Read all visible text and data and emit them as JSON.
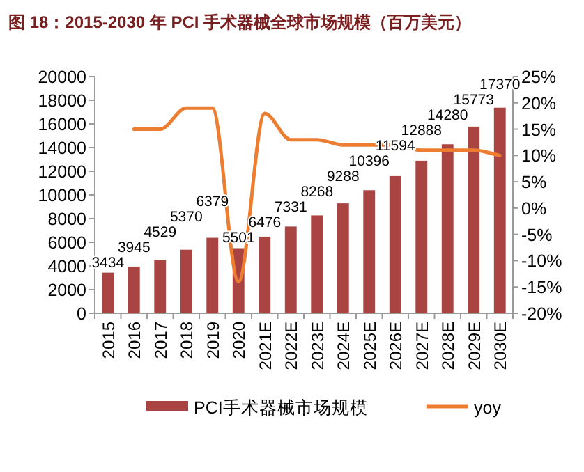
{
  "chart_data": {
    "type": "bar",
    "title": "图 18：2015-2030 年 PCI 手术器械全球市场规模（百万美元）",
    "categories": [
      "2015",
      "2016",
      "2017",
      "2018",
      "2019",
      "2020",
      "2021E",
      "2022E",
      "2023E",
      "2024E",
      "2025E",
      "2026E",
      "2027E",
      "2028E",
      "2029E",
      "2030E"
    ],
    "series": [
      {
        "name": "PCI手术器械市场规模",
        "color": "#a94442",
        "values": [
          3434,
          3945,
          4529,
          5370,
          6379,
          5501,
          6476,
          7331,
          8268,
          9288,
          10396,
          11594,
          12888,
          14280,
          15773,
          17370
        ],
        "value_labels": [
          "3434",
          "3945",
          "4529",
          "5370",
          "6379",
          "5501",
          "6476",
          "7331",
          "8268",
          "9288",
          "10396",
          "11594",
          "12888",
          "14280",
          "15773",
          "17370"
        ]
      },
      {
        "name": "yoy",
        "type": "line",
        "axis": "y2",
        "color": "#ed7d31",
        "values": [
          null,
          15,
          15,
          19,
          19,
          -14,
          18,
          13,
          13,
          12,
          12,
          12,
          11,
          11,
          11,
          10
        ]
      }
    ],
    "ylim": [
      0,
      20000
    ],
    "yticks": [
      0,
      2000,
      4000,
      6000,
      8000,
      10000,
      12000,
      14000,
      16000,
      18000,
      20000
    ],
    "y2lim": [
      -20,
      25
    ],
    "y2ticks": [
      {
        "value": -20,
        "label": "-20%"
      },
      {
        "value": -15,
        "label": "-15%"
      },
      {
        "value": -10,
        "label": "-10%"
      },
      {
        "value": -5,
        "label": "-5%"
      },
      {
        "value": 0,
        "label": "0%"
      },
      {
        "value": 5,
        "label": "5%"
      },
      {
        "value": 10,
        "label": "10%"
      },
      {
        "value": 15,
        "label": "15%"
      },
      {
        "value": 20,
        "label": "20%"
      },
      {
        "value": 25,
        "label": "25%"
      }
    ],
    "legend": "bottom",
    "grid": false,
    "marker": "none"
  }
}
